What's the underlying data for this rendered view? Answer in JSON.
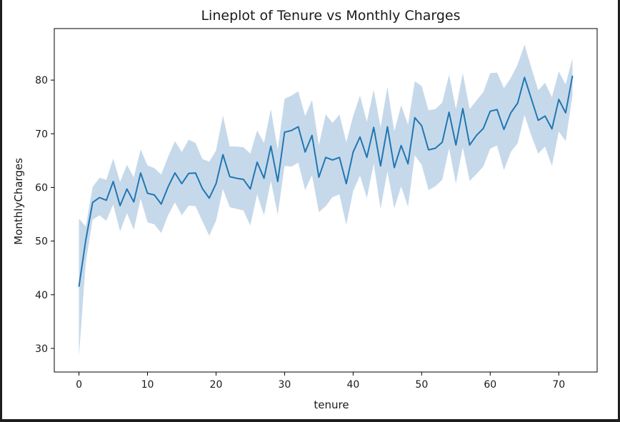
{
  "chart_data": {
    "type": "line",
    "title": "Lineplot of Tenure vs Monthly Charges",
    "xlabel": "tenure",
    "ylabel": "MonthlyCharges",
    "xlim": [
      -3.6,
      75.6
    ],
    "ylim": [
      25.6,
      89.6
    ],
    "xticks": [
      0,
      10,
      20,
      30,
      40,
      50,
      60,
      70
    ],
    "yticks": [
      30,
      40,
      50,
      60,
      70,
      80
    ],
    "grid": false,
    "line_color": "#1f77b4",
    "band_color": "#c6d9ea",
    "x": [
      0,
      1,
      2,
      3,
      4,
      5,
      6,
      7,
      8,
      9,
      10,
      11,
      12,
      13,
      14,
      15,
      16,
      17,
      18,
      19,
      20,
      21,
      22,
      23,
      24,
      25,
      26,
      27,
      28,
      29,
      30,
      31,
      32,
      33,
      34,
      35,
      36,
      37,
      38,
      39,
      40,
      41,
      42,
      43,
      44,
      45,
      46,
      47,
      48,
      49,
      50,
      51,
      52,
      53,
      54,
      55,
      56,
      57,
      58,
      59,
      60,
      61,
      62,
      63,
      64,
      65,
      66,
      67,
      68,
      69,
      70,
      71,
      72
    ],
    "series": [
      {
        "values": [
          41.5,
          50.2,
          57.2,
          58.1,
          57.6,
          61.1,
          56.6,
          59.7,
          57.3,
          62.7,
          58.9,
          58.6,
          56.9,
          60.1,
          62.7,
          60.7,
          62.6,
          62.7,
          59.8,
          58.0,
          60.7,
          66.1,
          62.0,
          61.7,
          61.5,
          59.7,
          64.7,
          61.7,
          67.7,
          61.1,
          70.3,
          70.6,
          71.3,
          66.6,
          69.7,
          61.9,
          65.6,
          65.1,
          65.6,
          60.7,
          66.6,
          69.4,
          65.6,
          71.2,
          64.0,
          71.3,
          63.7,
          67.8,
          64.4,
          73.0,
          71.5,
          67.0,
          67.3,
          68.4,
          74.0,
          67.9,
          74.7,
          67.9,
          69.7,
          71.0,
          74.2,
          74.5,
          70.8,
          73.9,
          75.7,
          80.5,
          76.5,
          72.5,
          73.3,
          70.9,
          76.4,
          73.9,
          80.8
        ],
        "ci_lower": [
          28.5,
          46.0,
          54.0,
          54.8,
          53.8,
          56.8,
          51.8,
          55.2,
          52.1,
          57.9,
          53.5,
          53.1,
          51.5,
          54.8,
          57.2,
          54.8,
          56.6,
          56.5,
          53.7,
          51.0,
          53.8,
          59.7,
          56.3,
          56.0,
          55.7,
          52.9,
          58.7,
          54.8,
          61.2,
          54.9,
          64.0,
          63.9,
          64.6,
          59.5,
          62.3,
          55.4,
          56.5,
          58.2,
          58.7,
          53.0,
          59.3,
          62.2,
          58.0,
          64.4,
          56.0,
          63.0,
          56.1,
          60.2,
          56.4,
          66.0,
          64.2,
          59.5,
          60.2,
          61.4,
          67.3,
          60.7,
          67.5,
          61.2,
          62.5,
          63.9,
          67.2,
          67.8,
          63.2,
          66.6,
          68.2,
          73.5,
          69.6,
          66.3,
          67.6,
          64.0,
          70.4,
          68.6,
          77.2
        ],
        "ci_upper": [
          54.2,
          52.7,
          60.1,
          61.8,
          61.4,
          65.4,
          61.0,
          64.2,
          61.9,
          67.1,
          64.1,
          63.6,
          62.4,
          65.7,
          68.6,
          66.6,
          68.9,
          68.3,
          65.3,
          64.8,
          66.9,
          73.4,
          67.6,
          67.6,
          67.5,
          66.3,
          70.6,
          68.3,
          74.6,
          67.0,
          76.5,
          77.1,
          77.9,
          73.3,
          76.3,
          67.9,
          73.6,
          72.0,
          73.6,
          68.4,
          73.3,
          77.1,
          72.2,
          78.2,
          71.2,
          78.7,
          70.4,
          75.3,
          71.7,
          79.8,
          78.9,
          74.4,
          74.6,
          75.8,
          81.0,
          74.6,
          81.3,
          74.6,
          76.2,
          77.8,
          81.3,
          81.4,
          78.5,
          80.4,
          82.9,
          86.6,
          82.3,
          78.1,
          79.5,
          76.8,
          81.6,
          79.2,
          84.1
        ]
      }
    ]
  }
}
